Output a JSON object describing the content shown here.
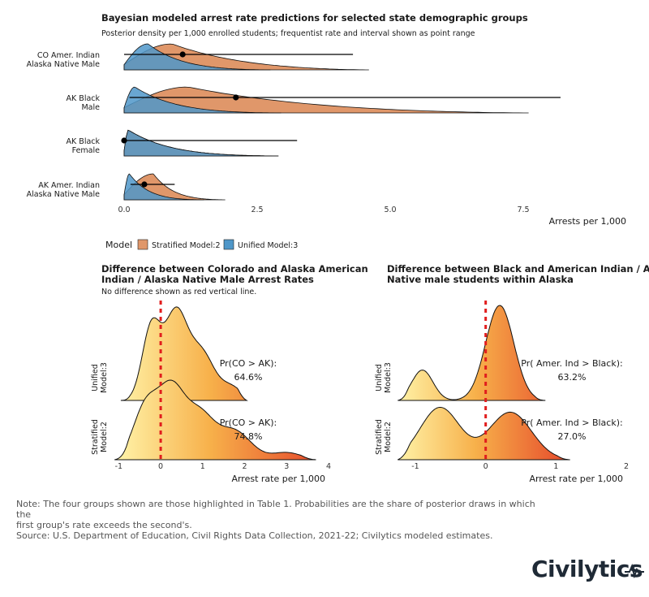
{
  "colors": {
    "stratified": "#e0976a",
    "unified": "#4f97c9",
    "overlap": "#5b7a8c",
    "point": "#000000",
    "null_line": "#e11d1d",
    "grad_low": "#fff3a8",
    "grad_mid": "#f7b04a",
    "grad_high": "#e5452a"
  },
  "chart_data": [
    {
      "type": "area",
      "title": "Bayesian modeled arrest rate predictions for selected state demographic groups",
      "subtitle": "Posterior density per 1,000 enrolled students; frequentist rate and interval shown as point range",
      "xlabel": "Arrests per 1,000",
      "xlim": [
        0,
        9.4
      ],
      "x_ticks": [
        "0.0",
        "2.5",
        "5.0",
        "7.5"
      ],
      "x_tick_values": [
        0,
        2.5,
        5,
        7.5
      ],
      "legend": {
        "title": "Model",
        "position": "bottom-left",
        "items": [
          {
            "key": "stratified",
            "label": "Stratified Model:2"
          },
          {
            "key": "unified",
            "label": "Unified Model:3"
          }
        ]
      },
      "groups": [
        {
          "label": [
            "CO Amer. Indian",
            "Alaska Native Male"
          ],
          "estimate": 1.1,
          "ci": [
            0.0,
            4.3
          ],
          "unified": {
            "max": 2.75,
            "peak": 0.45,
            "sharp": 0.9
          },
          "stratified": {
            "max": 4.6,
            "peak": 0.9,
            "sharp": 0.55
          }
        },
        {
          "label": [
            "AK Black",
            "Male"
          ],
          "estimate": 2.1,
          "ci": [
            0.1,
            8.2
          ],
          "unified": {
            "max": 2.95,
            "peak": 0.2,
            "sharp": 0.9
          },
          "stratified": {
            "max": 7.6,
            "peak": 1.2,
            "sharp": 0.5
          }
        },
        {
          "label": [
            "AK Black",
            "Female"
          ],
          "estimate": 0.0,
          "ci": [
            0.0,
            3.25
          ],
          "unified": {
            "max": 2.9,
            "peak": 0.08,
            "sharp": 0.9
          },
          "stratified": {
            "max": 2.9,
            "peak": 0.08,
            "sharp": 0.9
          }
        },
        {
          "label": [
            "AK Amer. Indian",
            "Alaska Native Male"
          ],
          "estimate": 0.38,
          "ci": [
            0.12,
            0.95
          ],
          "unified": {
            "max": 1.5,
            "peak": 0.1,
            "sharp": 1.0
          },
          "stratified": {
            "max": 1.9,
            "peak": 0.55,
            "sharp": 0.9
          }
        }
      ]
    },
    {
      "type": "area",
      "title": "Difference between Colorado and Alaska American Indian / Alaska Native Male Arrest Rates",
      "subtitle": "No difference shown as red vertical line.",
      "xlabel": "Arrest rate per 1,000",
      "xlim": [
        -1.2,
        4.0
      ],
      "x_ticks": [
        "-1",
        "0",
        "1",
        "2",
        "3",
        "4"
      ],
      "x_tick_values": [
        -1,
        0,
        1,
        2,
        3,
        4
      ],
      "null_line": 0,
      "rows": [
        {
          "label": [
            "Unified",
            "Model:3"
          ],
          "annotation": "Pr(CO > AK):",
          "value": "64.6%",
          "range": [
            -0.95,
            2.05
          ],
          "peaks": [
            [
              -0.22,
              0.22,
              0.82
            ],
            [
              0.35,
              0.26,
              0.92
            ],
            [
              0.95,
              0.32,
              0.55
            ],
            [
              1.7,
              0.25,
              0.14
            ]
          ]
        },
        {
          "label": [
            "Stratified",
            "Model:2"
          ],
          "annotation": "Pr(CO > AK):",
          "value": "74.8%",
          "range": [
            -1.1,
            3.7
          ],
          "peaks": [
            [
              -0.35,
              0.3,
              0.6
            ],
            [
              0.25,
              0.3,
              0.72
            ],
            [
              0.9,
              0.35,
              0.5
            ],
            [
              1.75,
              0.4,
              0.32
            ],
            [
              3.0,
              0.35,
              0.08
            ]
          ]
        }
      ]
    },
    {
      "type": "area",
      "title": "Difference between Black and American Indian / Alaska Native male students within Alaska",
      "xlabel": "Arrest rate per 1,000",
      "xlim": [
        -1.3,
        2.0
      ],
      "x_ticks": [
        "-1",
        "0",
        "1",
        "2"
      ],
      "x_tick_values": [
        -1,
        0,
        1,
        2
      ],
      "null_line": 0,
      "rows": [
        {
          "label": [
            "Unified",
            "Model:3"
          ],
          "annotation": "Pr( Amer. Ind > Black):",
          "value": "63.2%",
          "range": [
            -1.25,
            0.85
          ],
          "peaks": [
            [
              -0.9,
              0.15,
              0.32
            ],
            [
              0.2,
              0.2,
              1.0
            ]
          ]
        },
        {
          "label": [
            "Stratified",
            "Model:2"
          ],
          "annotation": "Pr( Amer. Ind > Black):",
          "value": "27.0%",
          "range": [
            -1.25,
            1.2
          ],
          "peaks": [
            [
              -0.65,
              0.28,
              0.55
            ],
            [
              0.35,
              0.3,
              0.5
            ]
          ]
        }
      ]
    }
  ],
  "footer": {
    "note_line1": "Note: The four groups shown are those highlighted in Table 1. Probabilities are the share of posterior draws in which the",
    "note_line2": "first group's rate exceeds the second's.",
    "source": "Source: U.S. Department of Education, Civil Rights Data Collection, 2021-22; Civilytics modeled estimates."
  },
  "brand": {
    "logo_text": "Civilytics"
  }
}
